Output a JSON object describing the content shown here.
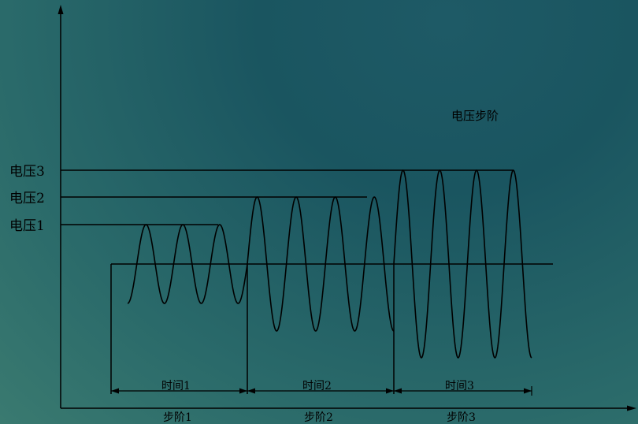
{
  "title": "电压步阶",
  "voltages": [
    "电压1",
    "电压2",
    "电压3"
  ],
  "times": [
    "时间1",
    "时间2",
    "时间3"
  ],
  "steps": [
    "步阶1",
    "步阶2",
    "步阶3"
  ]
}
